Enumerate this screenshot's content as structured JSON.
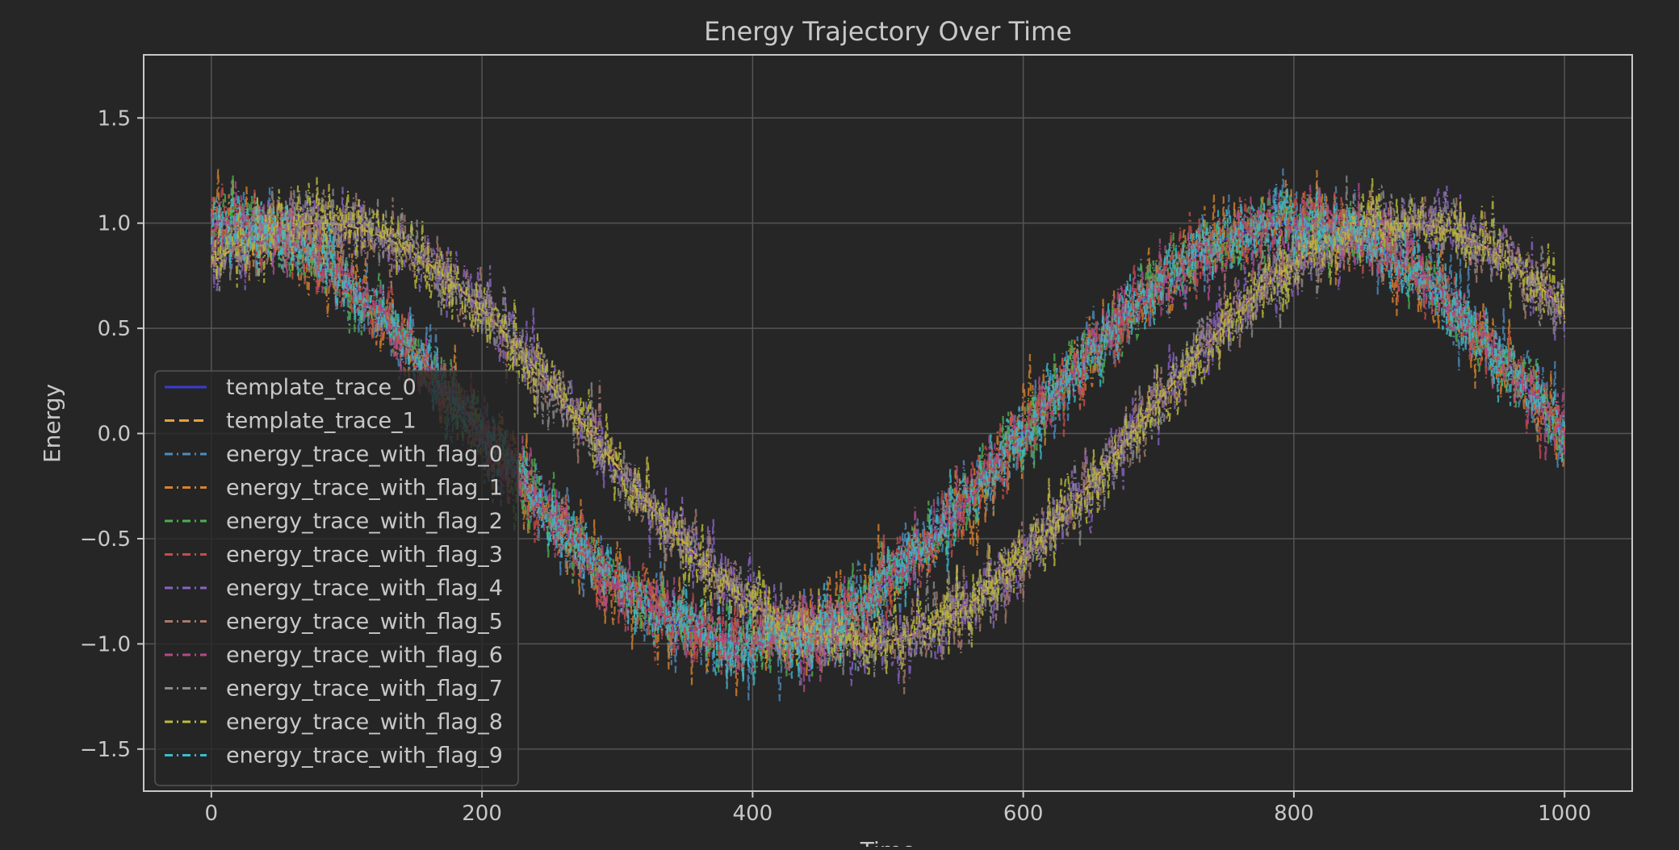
{
  "chart_data": {
    "type": "line",
    "title": "Energy Trajectory Over Time",
    "xlabel": "Time",
    "ylabel": "Energy",
    "xlim": [
      -50,
      1050
    ],
    "ylim": [
      -1.7,
      1.8
    ],
    "xticks": [
      0,
      200,
      400,
      600,
      800,
      1000
    ],
    "xtick_labels": [
      "0",
      "200",
      "400",
      "600",
      "800",
      "1000"
    ],
    "yticks": [
      1.5,
      1.0,
      0.5,
      0.0,
      -0.5,
      -1.0,
      -1.5
    ],
    "ytick_labels": [
      "1.5",
      "1.0",
      "0.5",
      "0.0",
      "−0.5",
      "−1.0",
      "−1.5"
    ],
    "grid": true,
    "legend_position": "lower-left",
    "theme": {
      "background": "#262626",
      "axes_edge": "#c8c8c8",
      "grid": "#555555",
      "text": "#c8c8c8"
    },
    "series": [
      {
        "name": "template_trace_0",
        "color": "#3b3bd6",
        "dash": "solid",
        "phase_shift": 0,
        "noise": 0.0
      },
      {
        "name": "template_trace_1",
        "color": "#e6a23c",
        "dash": "dashed",
        "phase_shift": 80,
        "noise": 0.0
      },
      {
        "name": "energy_trace_with_flag_0",
        "color": "#4c8cbf",
        "dash": "dashdot",
        "phase_shift": 0,
        "noise": 0.15
      },
      {
        "name": "energy_trace_with_flag_1",
        "color": "#d9822b",
        "dash": "dashdot",
        "phase_shift": 0,
        "noise": 0.15
      },
      {
        "name": "energy_trace_with_flag_2",
        "color": "#4caf50",
        "dash": "dashdot",
        "phase_shift": 0,
        "noise": 0.13
      },
      {
        "name": "energy_trace_with_flag_3",
        "color": "#c84b4b",
        "dash": "dashdot",
        "phase_shift": 0,
        "noise": 0.13
      },
      {
        "name": "energy_trace_with_flag_4",
        "color": "#8a63c7",
        "dash": "dashdot",
        "phase_shift": 80,
        "noise": 0.13
      },
      {
        "name": "energy_trace_with_flag_5",
        "color": "#a9796b",
        "dash": "dashdot",
        "phase_shift": 80,
        "noise": 0.13
      },
      {
        "name": "energy_trace_with_flag_6",
        "color": "#b34a8a",
        "dash": "dashdot",
        "phase_shift": 0,
        "noise": 0.13
      },
      {
        "name": "energy_trace_with_flag_7",
        "color": "#8c8c8c",
        "dash": "dashdot",
        "phase_shift": 80,
        "noise": 0.13
      },
      {
        "name": "energy_trace_with_flag_8",
        "color": "#bcbc3a",
        "dash": "dashdot",
        "phase_shift": 80,
        "noise": 0.13
      },
      {
        "name": "energy_trace_with_flag_9",
        "color": "#3bbccb",
        "dash": "dashdot",
        "phase_shift": 0,
        "noise": 0.13
      }
    ],
    "base_function": "cos(2*pi*(t - phase_shift)/800)",
    "t_range": [
      0,
      1000
    ]
  }
}
